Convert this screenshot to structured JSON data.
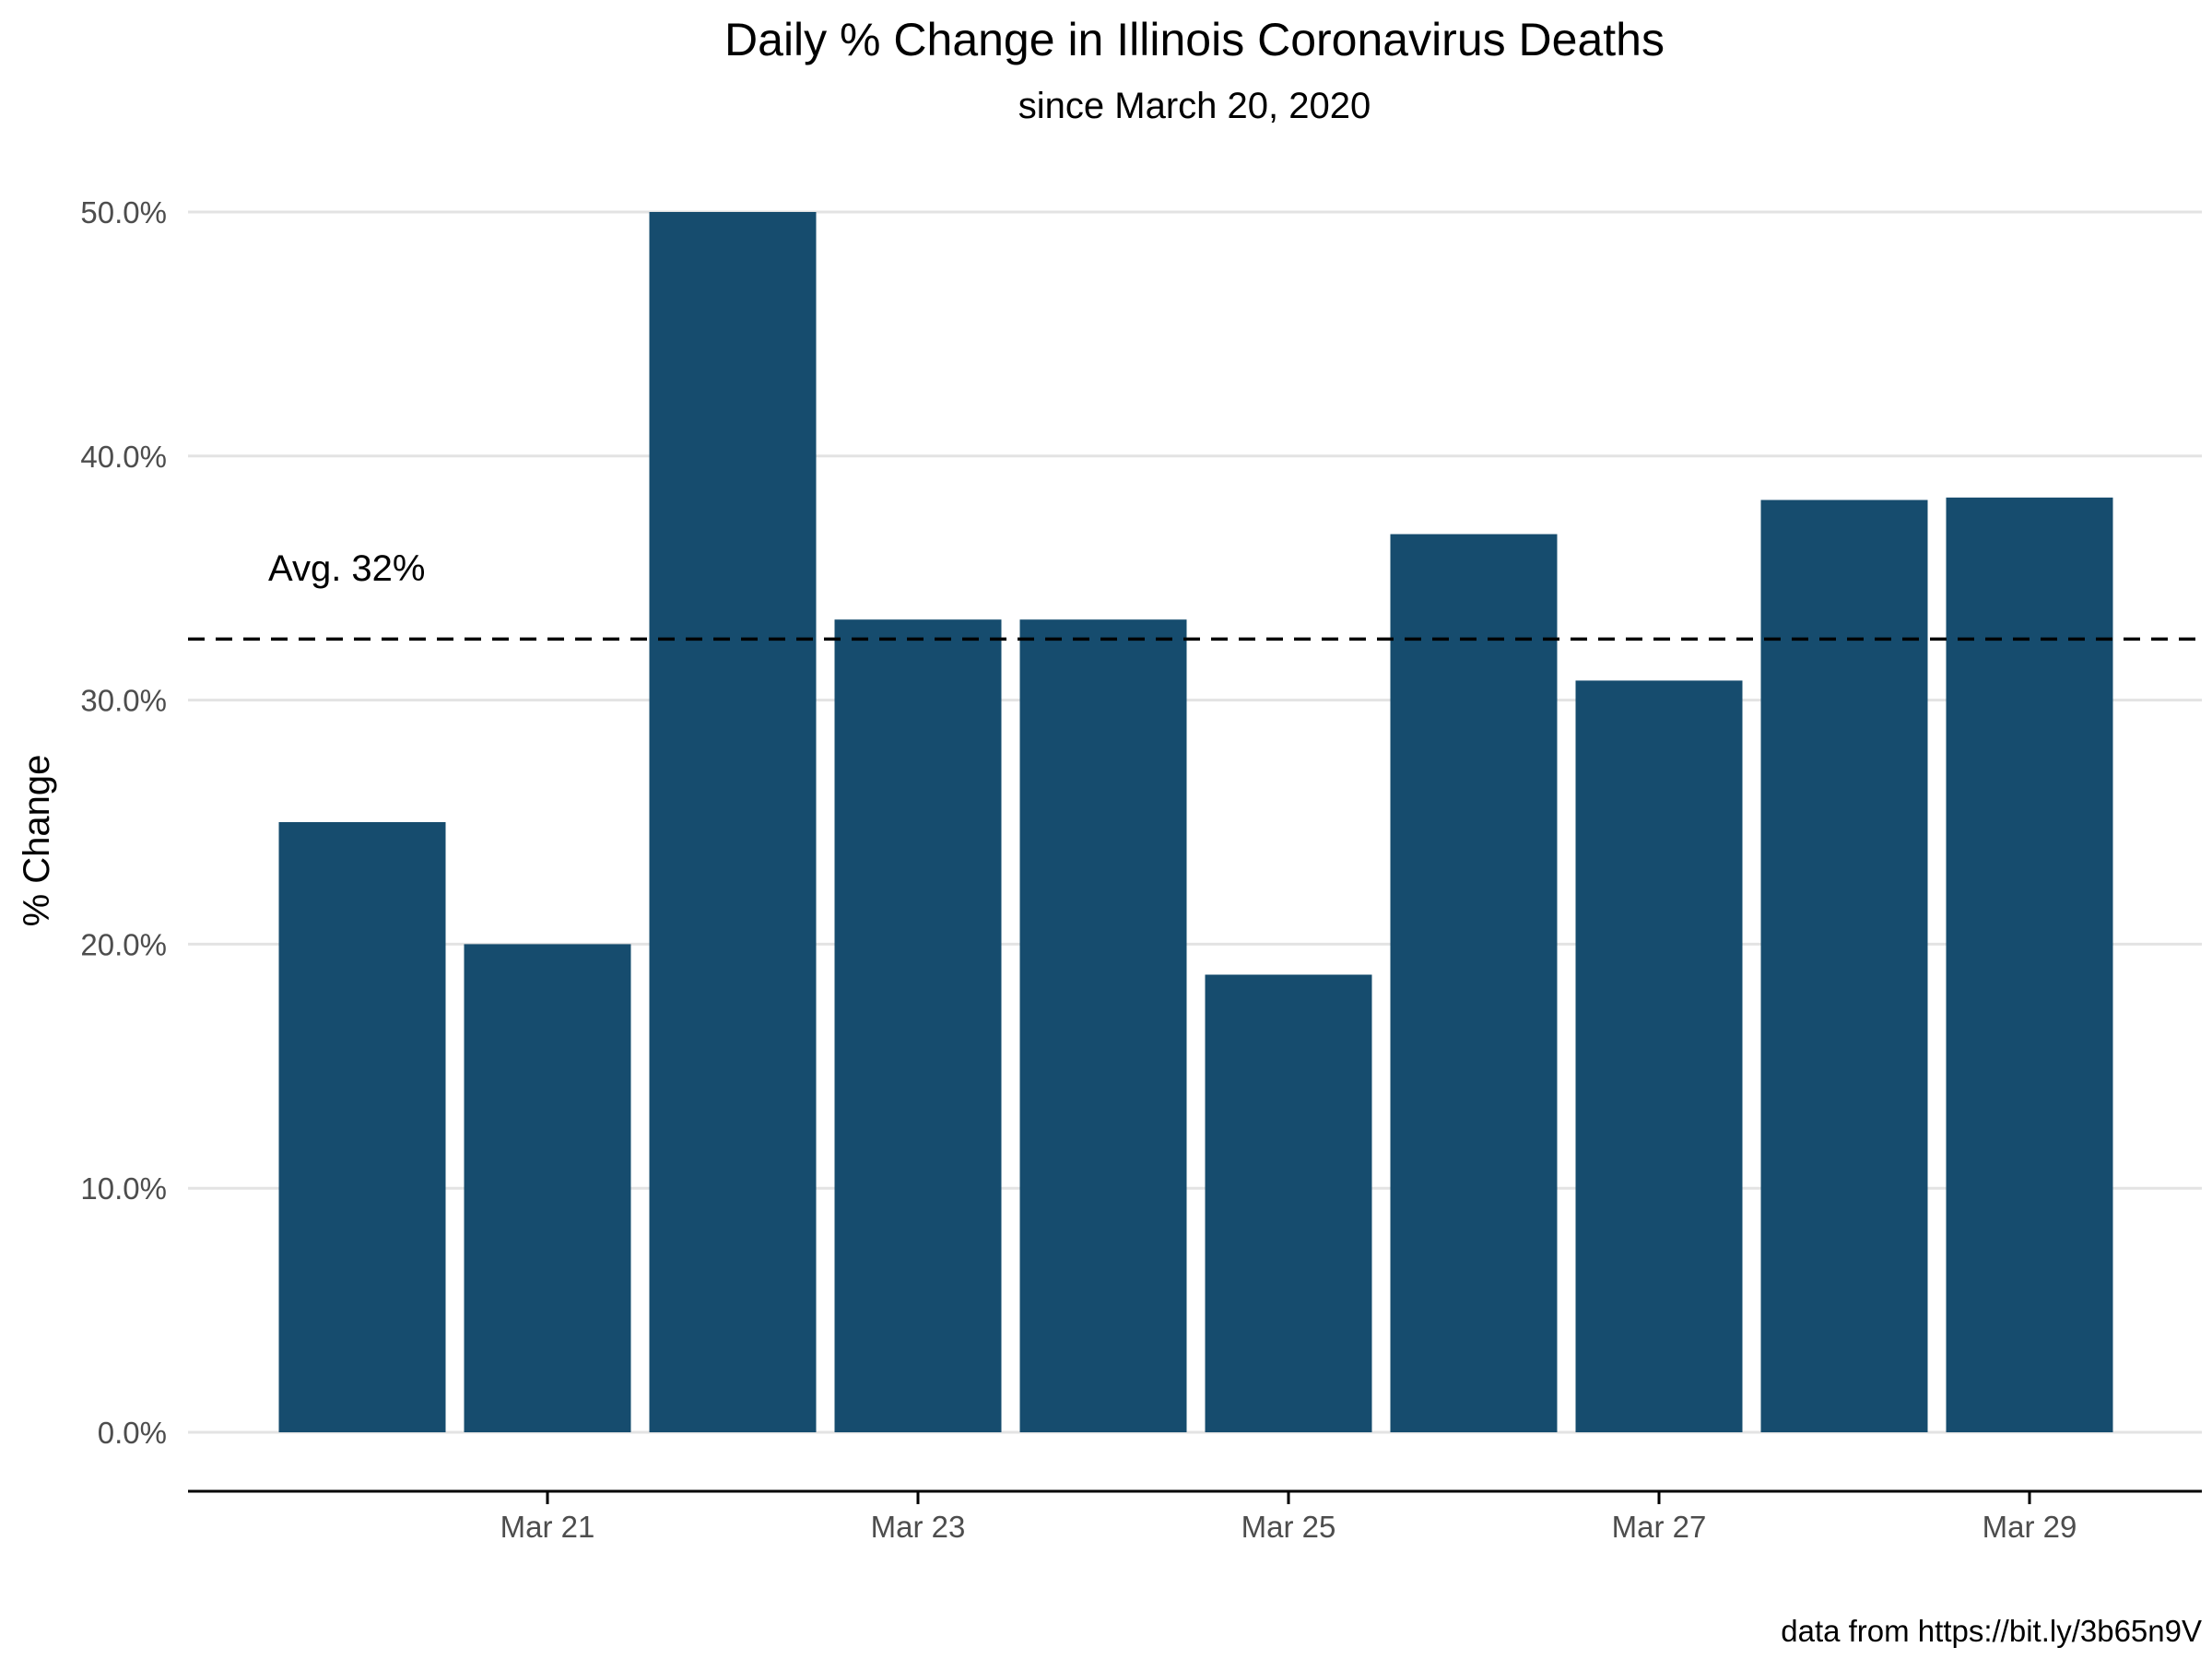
{
  "chart_data": {
    "type": "bar",
    "title": "Daily % Change in Illinois Coronavirus Deaths",
    "subtitle": "since March 20, 2020",
    "xlabel": "",
    "ylabel": "% Change",
    "caption": "data from https://bit.ly/3b65n9V",
    "categories": [
      "2020-03-20",
      "2020-03-21",
      "2020-03-22",
      "2020-03-23",
      "2020-03-24",
      "2020-03-25",
      "2020-03-26",
      "2020-03-27",
      "2020-03-28",
      "2020-03-29"
    ],
    "values": [
      25.0,
      20.0,
      50.0,
      33.3,
      33.3,
      18.75,
      36.8,
      30.8,
      38.2,
      38.3
    ],
    "x_ticks": [
      {
        "date": "2020-03-21",
        "label": "Mar 21"
      },
      {
        "date": "2020-03-23",
        "label": "Mar 23"
      },
      {
        "date": "2020-03-25",
        "label": "Mar 25"
      },
      {
        "date": "2020-03-27",
        "label": "Mar 27"
      },
      {
        "date": "2020-03-29",
        "label": "Mar 29"
      }
    ],
    "y_ticks": [
      0,
      10,
      20,
      30,
      40,
      50
    ],
    "y_tick_labels": [
      "0.0%",
      "10.0%",
      "20.0%",
      "30.0%",
      "40.0%",
      "50.0%"
    ],
    "ylim": [
      -2.4,
      50
    ],
    "average": 32.5,
    "average_label": "Avg. 32%",
    "grid": true,
    "legend": "none",
    "colors": {
      "bar": "#164c6e",
      "grid": "#e3e3e3",
      "avg_line": "#000000",
      "axis": "#000000"
    }
  }
}
